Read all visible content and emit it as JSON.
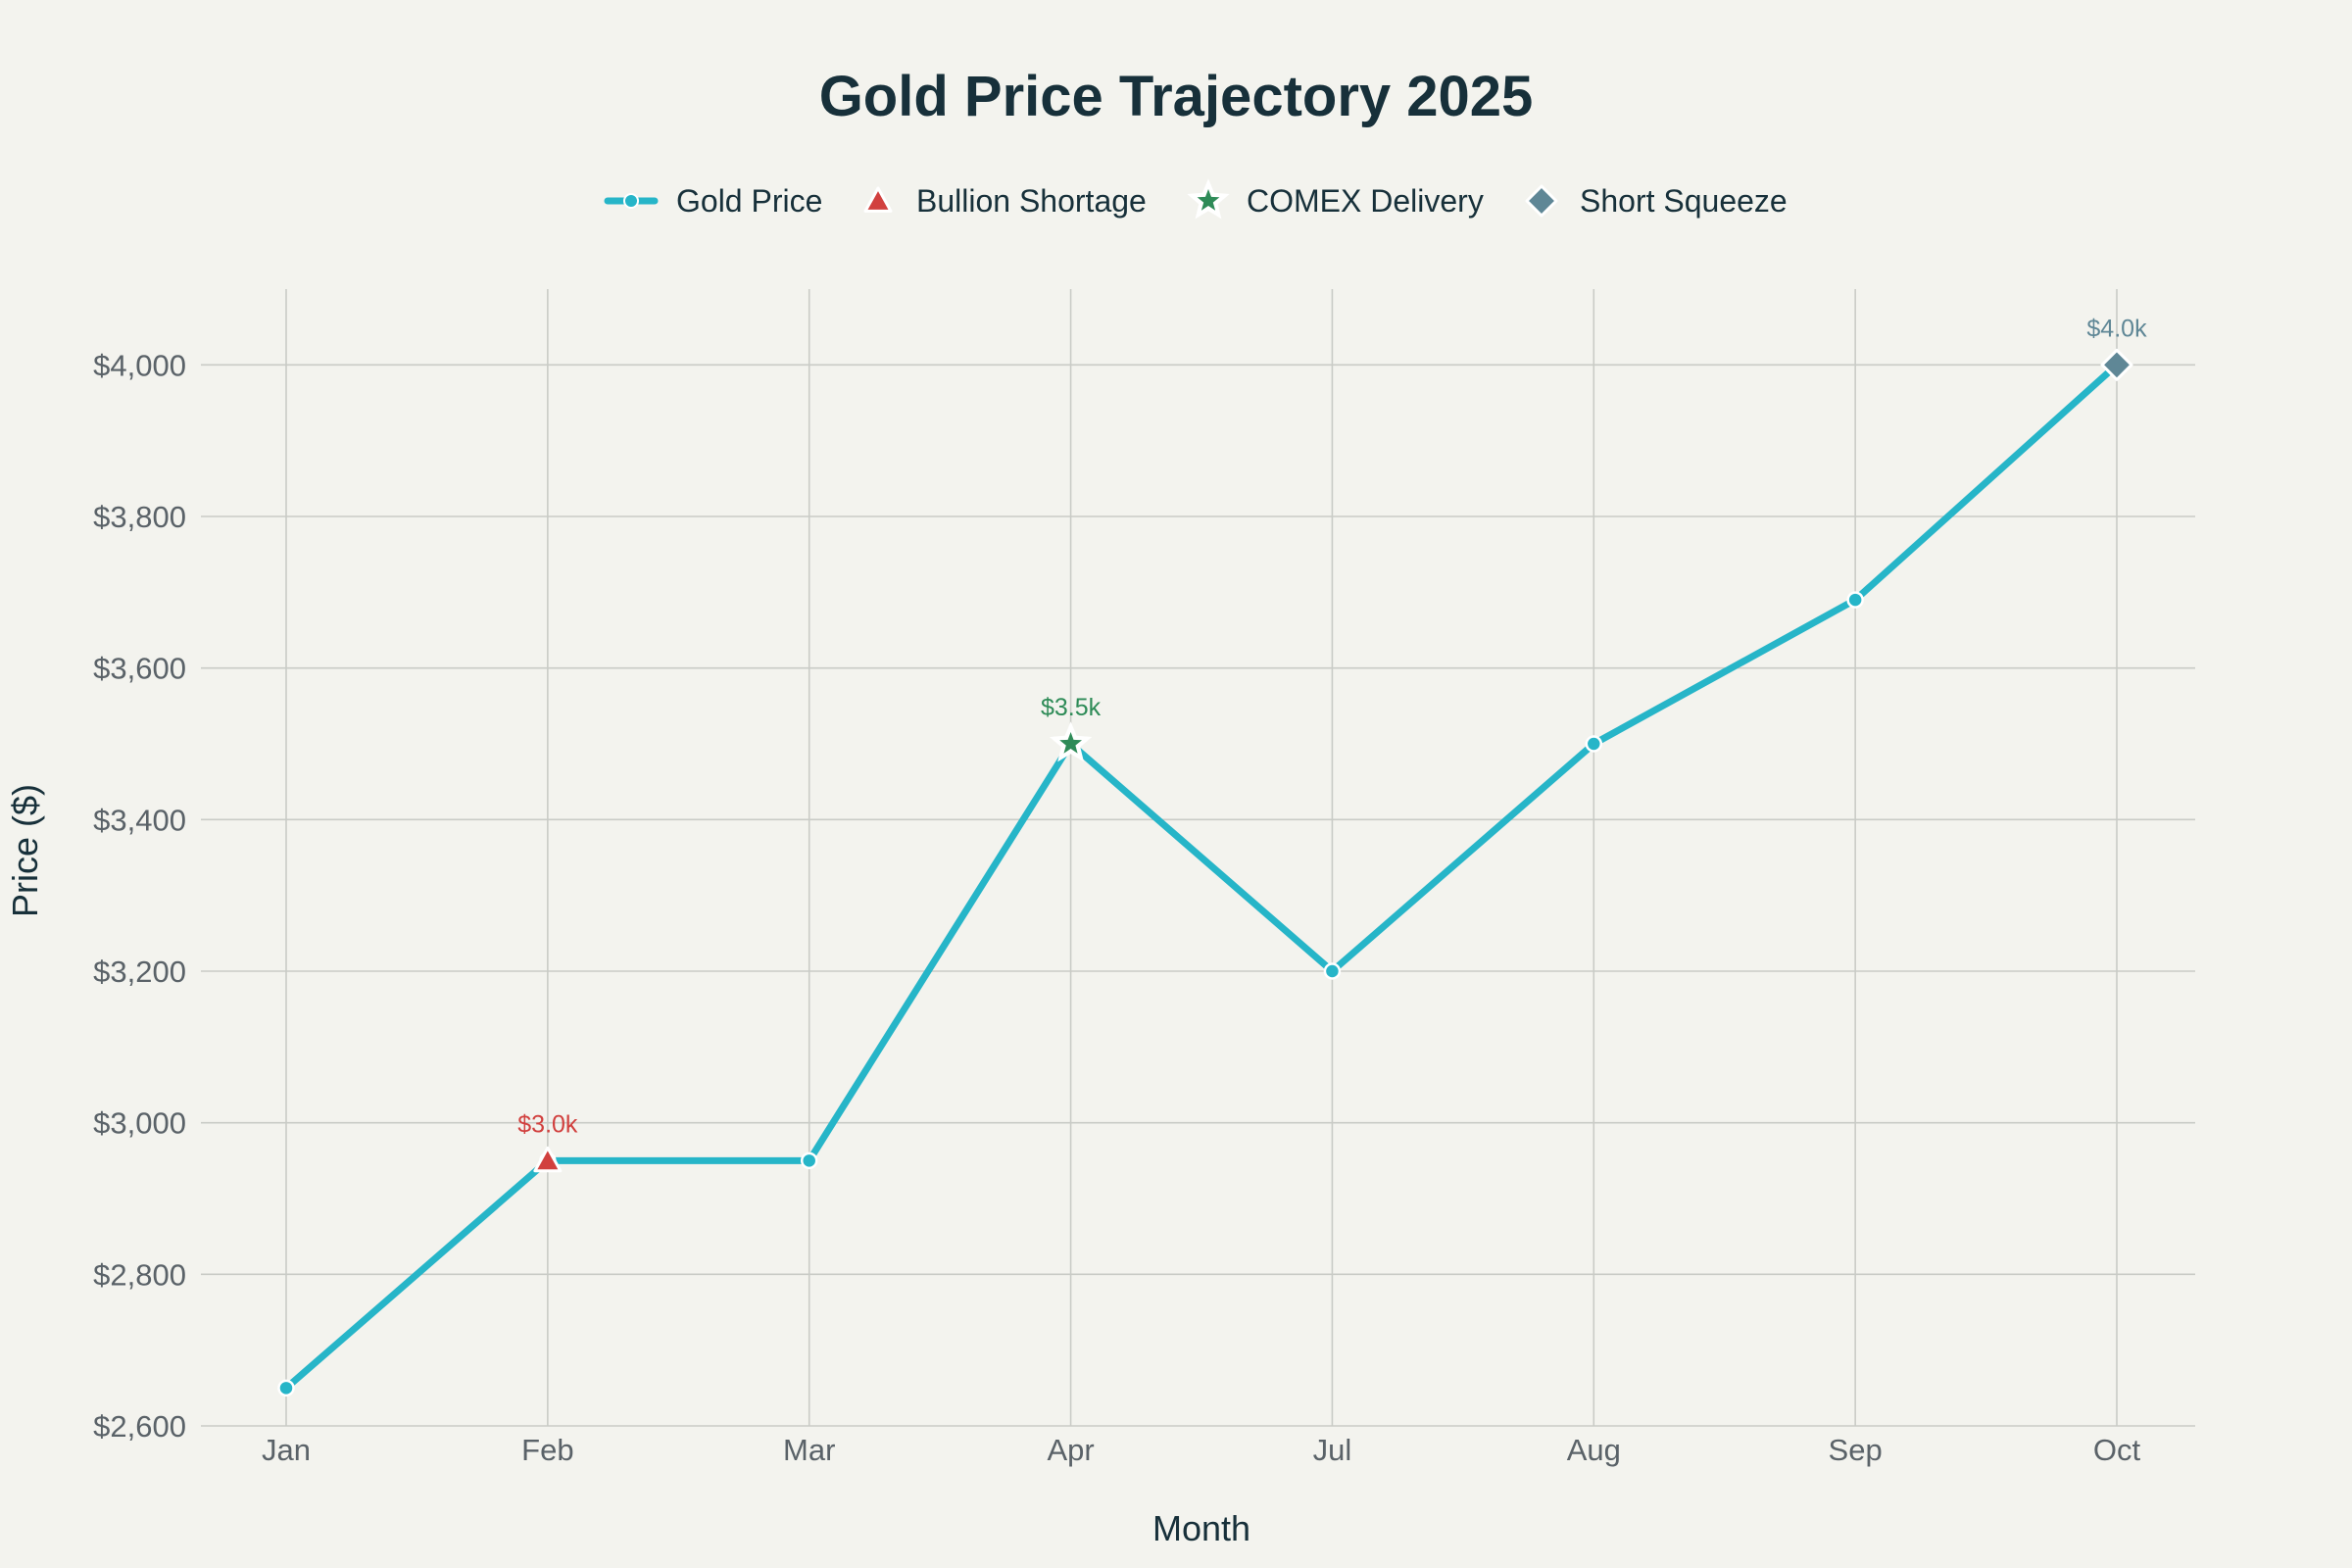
{
  "chart_data": {
    "type": "line",
    "title": "Gold Price Trajectory 2025",
    "xlabel": "Month",
    "ylabel": "Price ($)",
    "categories": [
      "Jan",
      "Feb",
      "Mar",
      "Apr",
      "Jul",
      "Aug",
      "Sep",
      "Oct"
    ],
    "ylim": [
      2600,
      4100
    ],
    "yticks": [
      2600,
      2800,
      3000,
      3200,
      3400,
      3600,
      3800,
      4000
    ],
    "ytick_labels": [
      "$2,600",
      "$2,800",
      "$3,000",
      "$3,200",
      "$3,400",
      "$3,600",
      "$3,800",
      "$4,000"
    ],
    "grid": true,
    "legend_position": "top-center",
    "series": [
      {
        "name": "Gold Price",
        "color": "#26b5c8",
        "values": [
          2650,
          2950,
          2950,
          3500,
          3200,
          3500,
          3690,
          4000
        ]
      }
    ],
    "events": [
      {
        "name": "Bullion Shortage",
        "category": "Feb",
        "value": 2950,
        "label": "$3.0k",
        "marker": "triangle",
        "color": "#d1403e"
      },
      {
        "name": "COMEX Delivery",
        "category": "Apr",
        "value": 3500,
        "label": "$3.5k",
        "marker": "star",
        "color": "#2e8b57"
      },
      {
        "name": "Short Squeeze",
        "category": "Oct",
        "value": 4000,
        "label": "$4.0k",
        "marker": "diamond",
        "color": "#5f8796"
      }
    ]
  }
}
